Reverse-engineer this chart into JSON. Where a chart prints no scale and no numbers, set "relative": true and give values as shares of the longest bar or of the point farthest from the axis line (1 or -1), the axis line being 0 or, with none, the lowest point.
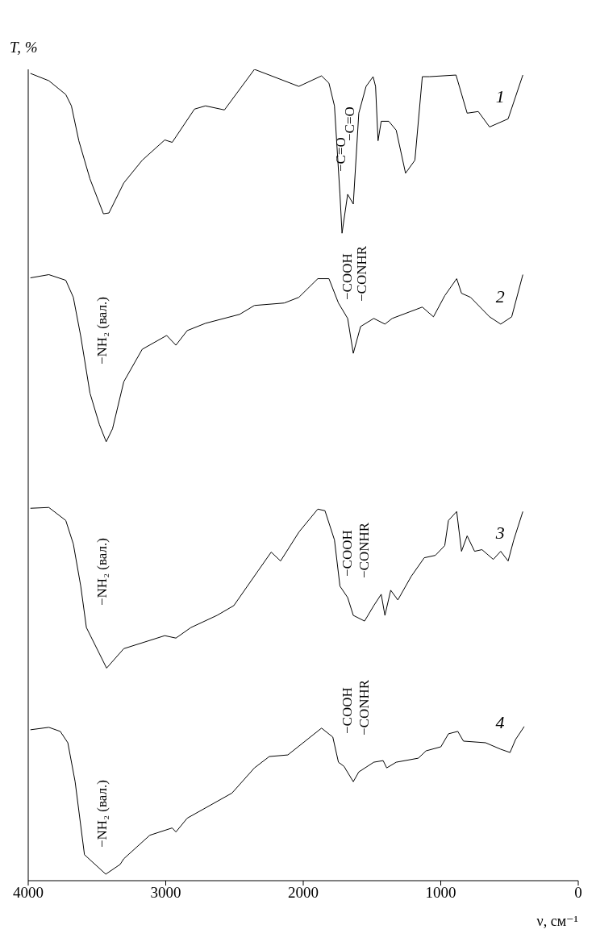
{
  "chart_data": {
    "type": "line",
    "relative": true,
    "ylabel": "T, %",
    "xlabel": "ν, см⁻¹",
    "xlim": [
      4000,
      0
    ],
    "xticks": [
      4000,
      3000,
      2000,
      1000,
      0
    ],
    "series": [
      {
        "name": "1",
        "color": "#000000",
        "x": [
          3984,
          3850,
          3727,
          3686,
          3632,
          3551,
          3453,
          3413,
          3305,
          3171,
          3007,
          2953,
          2791,
          2711,
          2573,
          2355,
          2247,
          2032,
          1867,
          1813,
          1773,
          1733,
          1718,
          1677,
          1636,
          1596,
          1543,
          1492,
          1474,
          1456,
          1433,
          1378,
          1324,
          1256,
          1188,
          1134,
          1082,
          889,
          808,
          727,
          645,
          510,
          403
        ],
        "values": [
          0.995,
          0.986,
          0.969,
          0.955,
          0.912,
          0.865,
          0.822,
          0.823,
          0.86,
          0.888,
          0.913,
          0.91,
          0.951,
          0.955,
          0.95,
          1.0,
          0.993,
          0.979,
          0.992,
          0.983,
          0.955,
          0.846,
          0.798,
          0.846,
          0.834,
          0.946,
          0.979,
          0.991,
          0.979,
          0.912,
          0.936,
          0.936,
          0.925,
          0.872,
          0.888,
          0.991,
          0.991,
          0.993,
          0.946,
          0.948,
          0.929,
          0.939,
          0.993
        ]
      },
      {
        "name": "2",
        "color": "#000000",
        "x": [
          3984,
          3850,
          3727,
          3672,
          3618,
          3551,
          3482,
          3433,
          3387,
          3305,
          3171,
          2993,
          2926,
          2844,
          2711,
          2463,
          2355,
          2138,
          2032,
          1894,
          1813,
          1744,
          1677,
          1636,
          1583,
          1487,
          1406,
          1353,
          1134,
          1053,
          971,
          884,
          849,
          783,
          645,
          564,
          484,
          403
        ],
        "values": [
          0.743,
          0.747,
          0.74,
          0.719,
          0.671,
          0.601,
          0.562,
          0.541,
          0.557,
          0.615,
          0.655,
          0.672,
          0.66,
          0.678,
          0.687,
          0.698,
          0.709,
          0.712,
          0.719,
          0.742,
          0.742,
          0.712,
          0.693,
          0.65,
          0.683,
          0.693,
          0.686,
          0.693,
          0.707,
          0.695,
          0.721,
          0.742,
          0.724,
          0.719,
          0.695,
          0.686,
          0.695,
          0.747
        ]
      },
      {
        "name": "3",
        "color": "#000000",
        "x": [
          3984,
          3850,
          3727,
          3672,
          3618,
          3577,
          3430,
          3305,
          3007,
          2926,
          2817,
          2627,
          2505,
          2328,
          2233,
          2165,
          2030,
          1894,
          1842,
          1773,
          1733,
          1677,
          1636,
          1554,
          1487,
          1433,
          1406,
          1364,
          1312,
          1215,
          1120,
          1039,
          971,
          944,
          884,
          849,
          808,
          754,
          700,
          618,
          564,
          510,
          469,
          403
        ],
        "values": [
          0.459,
          0.46,
          0.444,
          0.415,
          0.363,
          0.312,
          0.262,
          0.286,
          0.302,
          0.299,
          0.312,
          0.327,
          0.339,
          0.382,
          0.405,
          0.394,
          0.43,
          0.458,
          0.456,
          0.42,
          0.363,
          0.349,
          0.327,
          0.32,
          0.339,
          0.353,
          0.327,
          0.358,
          0.346,
          0.375,
          0.398,
          0.401,
          0.413,
          0.444,
          0.455,
          0.406,
          0.425,
          0.406,
          0.408,
          0.396,
          0.406,
          0.394,
          0.42,
          0.455
        ]
      },
      {
        "name": "4",
        "color": "#000000",
        "x": [
          3984,
          3850,
          3767,
          3712,
          3659,
          3591,
          3436,
          3332,
          3305,
          3116,
          2953,
          2926,
          2844,
          2518,
          2355,
          2247,
          2112,
          1867,
          1785,
          1744,
          1704,
          1636,
          1596,
          1487,
          1419,
          1393,
          1324,
          1163,
          1107,
          999,
          944,
          876,
          835,
          674,
          564,
          496,
          456,
          393
        ],
        "values": [
          0.186,
          0.189,
          0.184,
          0.17,
          0.122,
          0.032,
          0.008,
          0.02,
          0.027,
          0.056,
          0.065,
          0.06,
          0.077,
          0.108,
          0.139,
          0.153,
          0.155,
          0.188,
          0.177,
          0.146,
          0.141,
          0.122,
          0.134,
          0.146,
          0.148,
          0.139,
          0.146,
          0.151,
          0.16,
          0.165,
          0.181,
          0.184,
          0.172,
          0.17,
          0.162,
          0.158,
          0.174,
          0.19
        ]
      }
    ],
    "annotations": [
      "−C=O",
      "−C=O",
      "−NH₂ (вал.)",
      "−COOH",
      "−CONHR",
      "−NH₂ (вал.)",
      "−COOH",
      "−CONHR",
      "−NH₂ (вал.)",
      "−COOH",
      "−CONHR"
    ]
  }
}
